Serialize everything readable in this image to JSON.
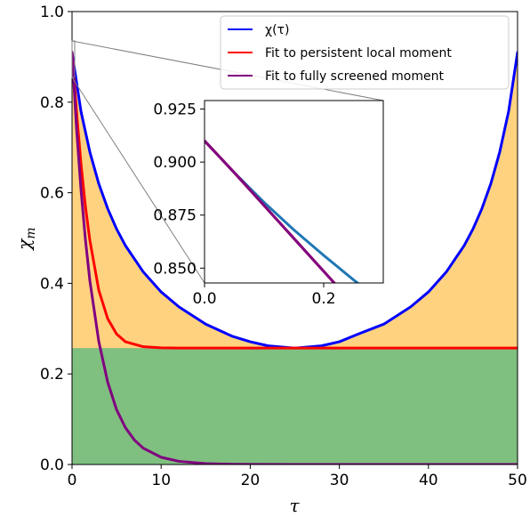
{
  "chart_data": {
    "type": "line",
    "xlabel": "τ",
    "ylabel": "χ",
    "ylabel_sub": "m",
    "xlim": [
      0,
      50
    ],
    "ylim": [
      0.0,
      1.0
    ],
    "x_ticks": [
      0,
      10,
      20,
      30,
      40,
      50
    ],
    "x_tick_labels": [
      "0",
      "10",
      "20",
      "30",
      "40",
      "50"
    ],
    "y_ticks": [
      0.0,
      0.2,
      0.4,
      0.6,
      0.8,
      1.0
    ],
    "y_tick_labels": [
      "0.0",
      "0.2",
      "0.4",
      "0.6",
      "0.8",
      "1.0"
    ],
    "legend_position": "top-right",
    "shaded_regions": [
      {
        "name": "orange-region",
        "color": "#FFD280",
        "description": "between chi(tau) and zero"
      },
      {
        "name": "green-region",
        "color": "#7FBF7F",
        "y_range": [
          0.0,
          0.257
        ]
      }
    ],
    "series": [
      {
        "name": "χ(τ)",
        "color": "#0000FF",
        "x": [
          0,
          1,
          2,
          3,
          4,
          5,
          6,
          8,
          10,
          12,
          15,
          18,
          20,
          22,
          25,
          28,
          30,
          32,
          35,
          38,
          40,
          42,
          44,
          45,
          46,
          47,
          48,
          49,
          50
        ],
        "y": [
          0.91,
          0.78,
          0.69,
          0.62,
          0.565,
          0.52,
          0.483,
          0.425,
          0.381,
          0.348,
          0.31,
          0.283,
          0.271,
          0.262,
          0.257,
          0.262,
          0.271,
          0.287,
          0.31,
          0.348,
          0.381,
          0.425,
          0.483,
          0.52,
          0.565,
          0.62,
          0.69,
          0.78,
          0.91
        ]
      },
      {
        "name": "Fit to persistent local moment",
        "color": "#FF0000",
        "x": [
          0,
          0.5,
          1,
          1.5,
          2,
          3,
          4,
          5,
          6,
          8,
          10,
          12,
          15,
          20,
          25,
          30,
          40,
          50
        ],
        "y": [
          0.91,
          0.78,
          0.665,
          0.57,
          0.495,
          0.385,
          0.322,
          0.288,
          0.271,
          0.26,
          0.2575,
          0.257,
          0.257,
          0.257,
          0.257,
          0.257,
          0.257,
          0.257
        ]
      },
      {
        "name": "Fit to fully screened moment",
        "color": "#800080",
        "x": [
          0,
          0.5,
          1,
          1.5,
          2,
          3,
          4,
          5,
          6,
          7,
          8,
          10,
          12,
          15,
          18,
          20,
          25,
          30,
          40,
          50
        ],
        "y": [
          0.91,
          0.743,
          0.608,
          0.497,
          0.406,
          0.272,
          0.182,
          0.121,
          0.081,
          0.054,
          0.036,
          0.016,
          0.007,
          0.002,
          0.0005,
          0.0002,
          0.0,
          0.0,
          0.0,
          0.0
        ]
      }
    ],
    "inset": {
      "xlim": [
        0.0,
        0.3
      ],
      "ylim": [
        0.843,
        0.929
      ],
      "x_ticks": [
        0.0,
        0.2
      ],
      "x_tick_labels": [
        "0.0",
        "0.2"
      ],
      "y_ticks": [
        0.85,
        0.875,
        0.9,
        0.925
      ],
      "y_tick_labels": [
        "0.850",
        "0.875",
        "0.900",
        "0.925"
      ],
      "series": [
        {
          "name": "χ(τ)",
          "color": "#1F77B4",
          "x": [
            0.0,
            0.05,
            0.1,
            0.15,
            0.2,
            0.25,
            0.28
          ],
          "y": [
            0.91,
            0.895,
            0.881,
            0.868,
            0.856,
            0.8445,
            0.838
          ]
        },
        {
          "name": "Fit to persistent local moment",
          "color": "#FF0000",
          "x": [
            0.0,
            0.05,
            0.1,
            0.15,
            0.2,
            0.25
          ],
          "y": [
            0.91,
            0.895,
            0.8795,
            0.864,
            0.8485,
            0.833
          ]
        },
        {
          "name": "Fit to fully screened moment",
          "color": "#800080",
          "x": [
            0.0,
            0.05,
            0.1,
            0.15,
            0.2,
            0.25
          ],
          "y": [
            0.91,
            0.895,
            0.8795,
            0.864,
            0.8485,
            0.833
          ]
        }
      ]
    }
  }
}
